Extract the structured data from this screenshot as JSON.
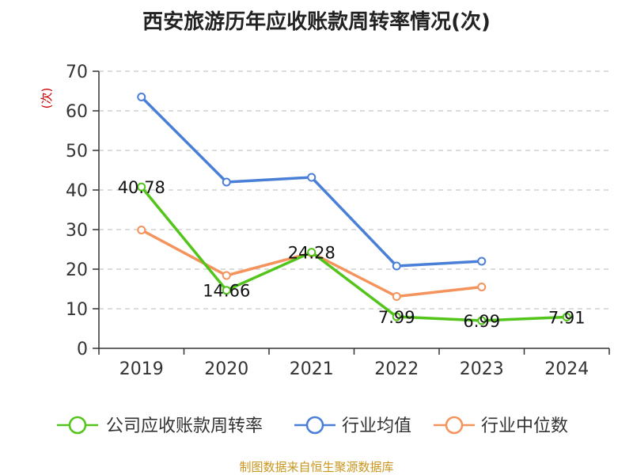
{
  "chart_data": {
    "type": "line",
    "title": "西安旅游历年应收账款周转率情况(次)",
    "ylabel": "(次)",
    "xlabel": "",
    "categories": [
      "2019",
      "2020",
      "2021",
      "2022",
      "2023",
      "2024"
    ],
    "ylim": [
      0,
      70
    ],
    "yticks": [
      0,
      10,
      20,
      30,
      40,
      50,
      60,
      70
    ],
    "grid": true,
    "legend_position": "bottom",
    "series": [
      {
        "name": "公司应收账款周转率",
        "color": "#52c41a",
        "values": [
          40.78,
          14.66,
          24.28,
          7.99,
          6.99,
          7.91
        ],
        "data_labels": [
          "40.78",
          "14.66",
          "24.28",
          "7.99",
          "6.99",
          "7.91"
        ]
      },
      {
        "name": "行业均值",
        "color": "#4a7fd8",
        "values": [
          63.5,
          42.0,
          43.2,
          20.8,
          22.0,
          null
        ]
      },
      {
        "name": "行业中位数",
        "color": "#f5935c",
        "values": [
          29.9,
          18.4,
          24.1,
          13.1,
          15.5,
          null
        ]
      }
    ],
    "source": "制图数据来自恒生聚源数据库"
  }
}
